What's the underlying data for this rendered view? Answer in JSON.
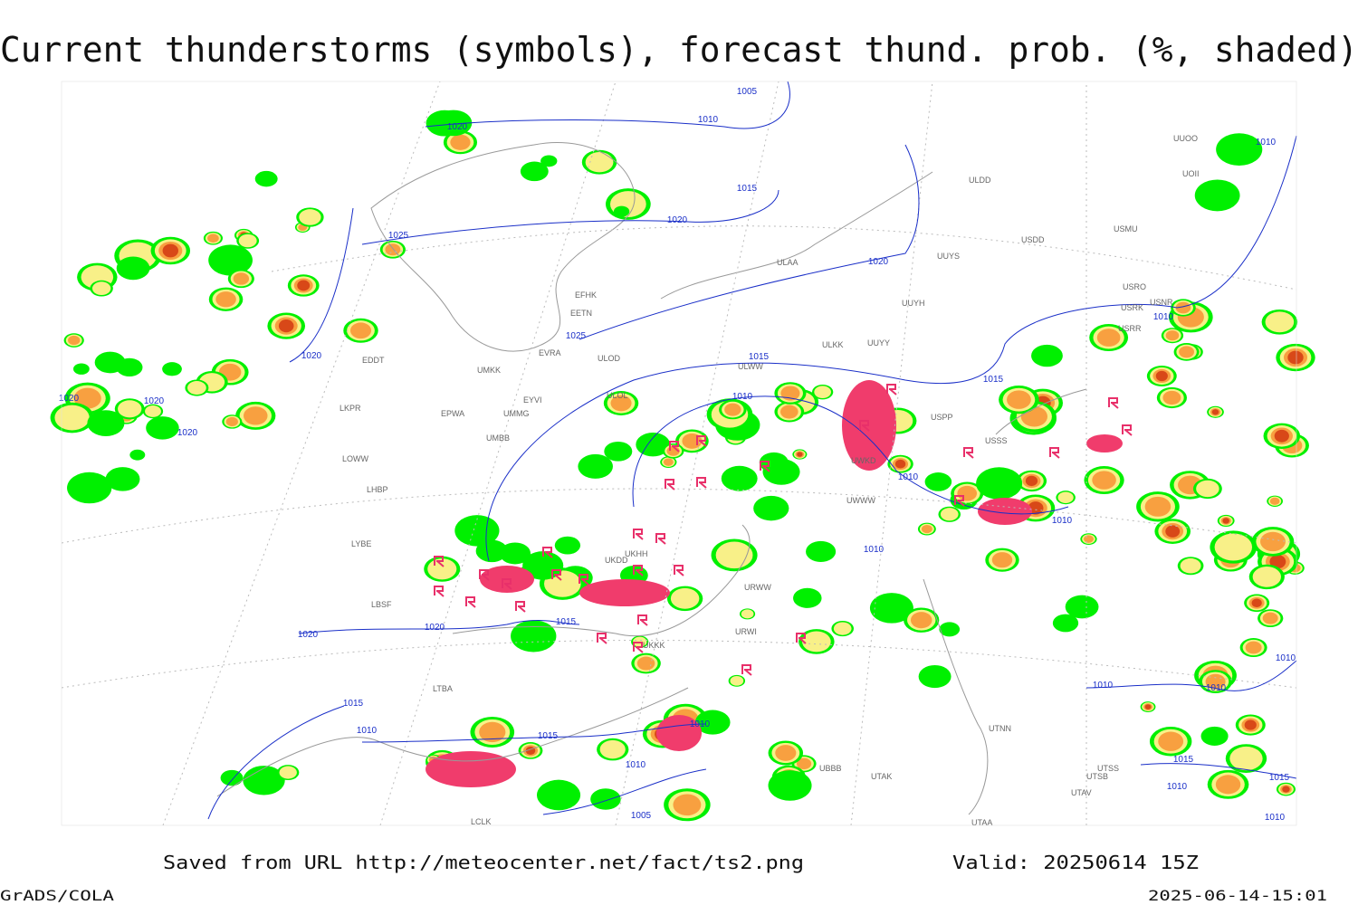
{
  "header": {
    "title": "Current thunderstorms (symbols), forecast thund. prob. (%, shaded)"
  },
  "map": {
    "isobar_labels": [
      "1005",
      "1010",
      "1020",
      "1015",
      "1020",
      "1025",
      "1020",
      "1025",
      "1020",
      "1015",
      "1020",
      "1020",
      "1010",
      "1015",
      "1010",
      "1010",
      "1010",
      "1010",
      "1010",
      "1015",
      "1020",
      "1020",
      "1015",
      "1010",
      "1015",
      "1010",
      "1010",
      "1005",
      "1010",
      "1010",
      "1015",
      "1010",
      "1015",
      "1010",
      "1010",
      "1020"
    ],
    "station_labels": [
      "ULDD",
      "USDD",
      "USMU",
      "UUYS",
      "ULAA",
      "UUYH",
      "USRO",
      "USRK",
      "USNR",
      "USRR",
      "ULKK",
      "UUYY",
      "ULWW",
      "ULOL",
      "EFHK",
      "EETN",
      "EVRA",
      "ULOD",
      "UMKK",
      "EYVI",
      "UMMG",
      "EPWA",
      "UMBB",
      "EDDT",
      "LKPR",
      "LOWW",
      "LHBP",
      "LYBE",
      "LBSF",
      "LTBA",
      "UUOO",
      "UOII",
      "USSS",
      "USPP",
      "UWWW",
      "UWKD",
      "URWW",
      "URWI",
      "UKHH",
      "UKDD",
      "UKKK",
      "UTAA",
      "UTAK",
      "UTNN",
      "UTSS",
      "UTSB",
      "UTAV",
      "UBBB",
      "LCLK"
    ]
  },
  "footer": {
    "source": "Saved from URL http://meteocenter.net/fact/ts2.png",
    "valid": "Valid: 20250614 15Z",
    "software": "GrADS/COLA",
    "timestamp": "2025-06-14-15:01"
  }
}
